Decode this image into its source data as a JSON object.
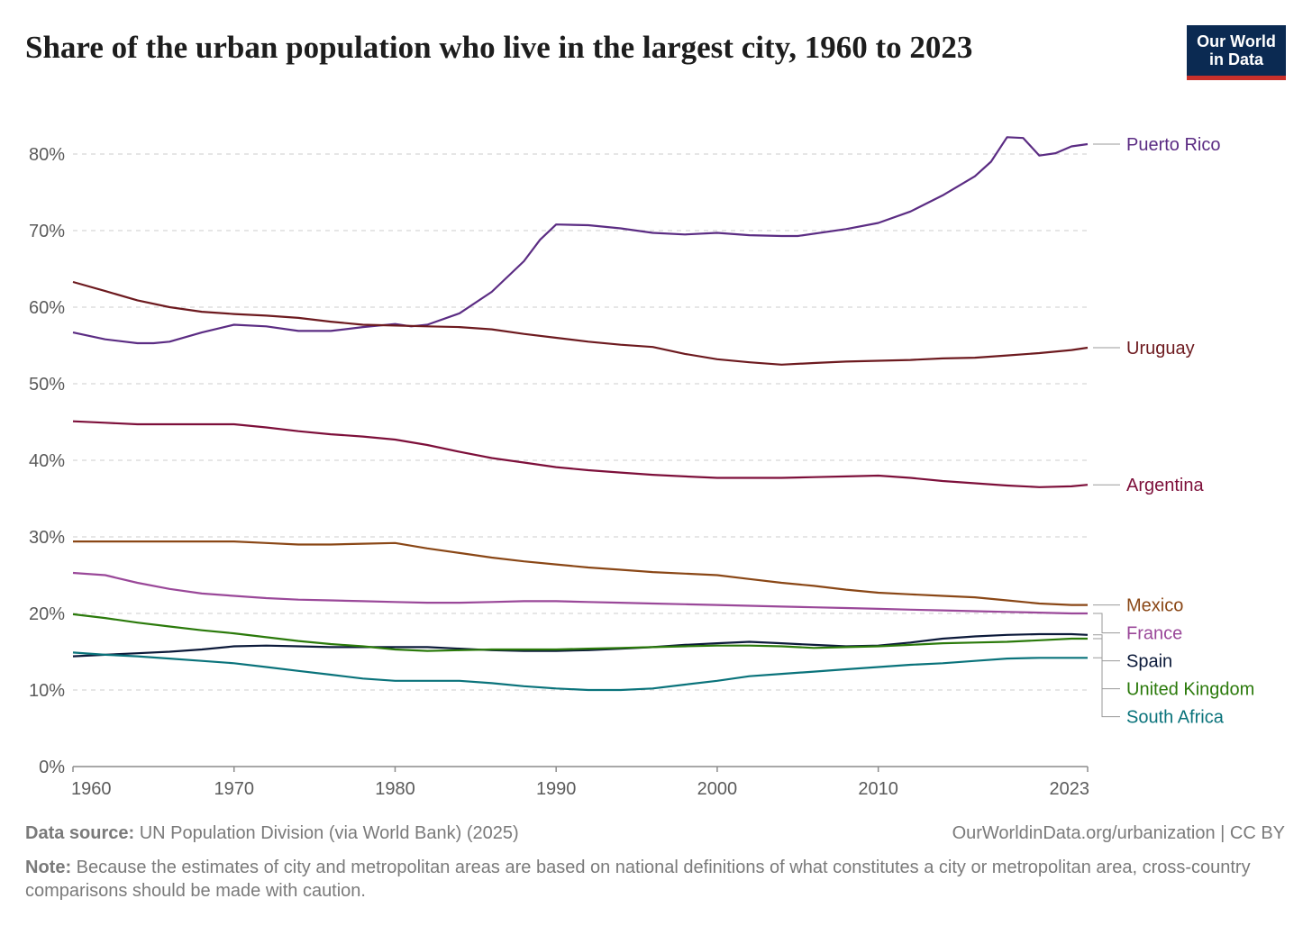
{
  "header": {
    "title": "Share of the urban population who live in the largest city, 1960 to 2023",
    "logo_line1": "Our World",
    "logo_line2": "in Data"
  },
  "footer": {
    "source_label": "Data source:",
    "source_text": "UN Population Division (via World Bank) (2025)",
    "license": "OurWorldinData.org/urbanization | CC BY",
    "note_label": "Note:",
    "note_text": "Because the estimates of city and metropolitan areas are based on national definitions of what constitutes a city or metropolitan area, cross-country comparisons should be made with caution."
  },
  "chart_data": {
    "type": "line",
    "title": "Share of the urban population who live in the largest city, 1960 to 2023",
    "xlabel": "",
    "ylabel": "",
    "xlim": [
      1960,
      2023
    ],
    "ylim": [
      0,
      80
    ],
    "x_ticks": [
      "1960",
      "1970",
      "1980",
      "1990",
      "2000",
      "2010",
      "2023"
    ],
    "y_ticks": [
      "0%",
      "10%",
      "20%",
      "30%",
      "40%",
      "50%",
      "60%",
      "70%",
      "80%"
    ],
    "y_tick_values": [
      0,
      10,
      20,
      30,
      40,
      50,
      60,
      70,
      80
    ],
    "grid": "horizontal dashed",
    "legend": "labels at right end of lines",
    "series": [
      {
        "name": "Puerto Rico",
        "color": "#5b2c83",
        "points": [
          [
            1960,
            56.7
          ],
          [
            1962,
            55.8
          ],
          [
            1964,
            55.3
          ],
          [
            1965,
            55.3
          ],
          [
            1966,
            55.5
          ],
          [
            1968,
            56.7
          ],
          [
            1970,
            57.7
          ],
          [
            1972,
            57.5
          ],
          [
            1974,
            56.9
          ],
          [
            1976,
            56.9
          ],
          [
            1978,
            57.4
          ],
          [
            1980,
            57.8
          ],
          [
            1981,
            57.5
          ],
          [
            1982,
            57.7
          ],
          [
            1984,
            59.2
          ],
          [
            1986,
            62.0
          ],
          [
            1988,
            66.0
          ],
          [
            1989,
            68.8
          ],
          [
            1990,
            70.8
          ],
          [
            1992,
            70.7
          ],
          [
            1994,
            70.3
          ],
          [
            1996,
            69.7
          ],
          [
            1998,
            69.5
          ],
          [
            2000,
            69.7
          ],
          [
            2002,
            69.4
          ],
          [
            2004,
            69.3
          ],
          [
            2005,
            69.3
          ],
          [
            2008,
            70.2
          ],
          [
            2010,
            71.0
          ],
          [
            2012,
            72.5
          ],
          [
            2014,
            74.6
          ],
          [
            2016,
            77.1
          ],
          [
            2017,
            79.0
          ],
          [
            2018,
            82.2
          ],
          [
            2019,
            82.1
          ],
          [
            2020,
            79.8
          ],
          [
            2021,
            80.1
          ],
          [
            2022,
            81.0
          ],
          [
            2023,
            81.3
          ]
        ]
      },
      {
        "name": "Uruguay",
        "color": "#6d1a1f",
        "points": [
          [
            1960,
            63.3
          ],
          [
            1962,
            62.1
          ],
          [
            1964,
            60.9
          ],
          [
            1966,
            60.0
          ],
          [
            1968,
            59.4
          ],
          [
            1970,
            59.1
          ],
          [
            1972,
            58.9
          ],
          [
            1974,
            58.6
          ],
          [
            1976,
            58.1
          ],
          [
            1978,
            57.7
          ],
          [
            1980,
            57.6
          ],
          [
            1982,
            57.5
          ],
          [
            1984,
            57.4
          ],
          [
            1986,
            57.1
          ],
          [
            1988,
            56.5
          ],
          [
            1990,
            56.0
          ],
          [
            1992,
            55.5
          ],
          [
            1994,
            55.1
          ],
          [
            1996,
            54.8
          ],
          [
            1998,
            53.9
          ],
          [
            2000,
            53.2
          ],
          [
            2002,
            52.8
          ],
          [
            2004,
            52.5
          ],
          [
            2006,
            52.7
          ],
          [
            2008,
            52.9
          ],
          [
            2010,
            53.0
          ],
          [
            2012,
            53.1
          ],
          [
            2014,
            53.3
          ],
          [
            2016,
            53.4
          ],
          [
            2018,
            53.7
          ],
          [
            2020,
            54.0
          ],
          [
            2022,
            54.4
          ],
          [
            2023,
            54.7
          ]
        ]
      },
      {
        "name": "Argentina",
        "color": "#7d0f3a",
        "points": [
          [
            1960,
            45.1
          ],
          [
            1962,
            44.9
          ],
          [
            1964,
            44.7
          ],
          [
            1966,
            44.7
          ],
          [
            1968,
            44.7
          ],
          [
            1970,
            44.7
          ],
          [
            1972,
            44.3
          ],
          [
            1974,
            43.8
          ],
          [
            1976,
            43.4
          ],
          [
            1978,
            43.1
          ],
          [
            1980,
            42.7
          ],
          [
            1982,
            42.0
          ],
          [
            1984,
            41.1
          ],
          [
            1986,
            40.3
          ],
          [
            1988,
            39.7
          ],
          [
            1990,
            39.1
          ],
          [
            1992,
            38.7
          ],
          [
            1994,
            38.4
          ],
          [
            1996,
            38.1
          ],
          [
            1998,
            37.9
          ],
          [
            2000,
            37.7
          ],
          [
            2002,
            37.7
          ],
          [
            2004,
            37.7
          ],
          [
            2006,
            37.8
          ],
          [
            2008,
            37.9
          ],
          [
            2010,
            38.0
          ],
          [
            2012,
            37.7
          ],
          [
            2014,
            37.3
          ],
          [
            2016,
            37.0
          ],
          [
            2018,
            36.7
          ],
          [
            2020,
            36.5
          ],
          [
            2022,
            36.6
          ],
          [
            2023,
            36.8
          ]
        ]
      },
      {
        "name": "Mexico",
        "color": "#8a4716",
        "points": [
          [
            1960,
            29.4
          ],
          [
            1962,
            29.4
          ],
          [
            1964,
            29.4
          ],
          [
            1966,
            29.4
          ],
          [
            1968,
            29.4
          ],
          [
            1970,
            29.4
          ],
          [
            1972,
            29.2
          ],
          [
            1974,
            29.0
          ],
          [
            1976,
            29.0
          ],
          [
            1978,
            29.1
          ],
          [
            1980,
            29.2
          ],
          [
            1982,
            28.5
          ],
          [
            1984,
            27.9
          ],
          [
            1986,
            27.3
          ],
          [
            1988,
            26.8
          ],
          [
            1990,
            26.4
          ],
          [
            1992,
            26.0
          ],
          [
            1994,
            25.7
          ],
          [
            1996,
            25.4
          ],
          [
            1998,
            25.2
          ],
          [
            2000,
            25.0
          ],
          [
            2002,
            24.5
          ],
          [
            2004,
            24.0
          ],
          [
            2006,
            23.6
          ],
          [
            2008,
            23.1
          ],
          [
            2010,
            22.7
          ],
          [
            2012,
            22.5
          ],
          [
            2014,
            22.3
          ],
          [
            2016,
            22.1
          ],
          [
            2018,
            21.7
          ],
          [
            2020,
            21.3
          ],
          [
            2022,
            21.1
          ],
          [
            2023,
            21.1
          ]
        ]
      },
      {
        "name": "France",
        "color": "#9a4899",
        "points": [
          [
            1960,
            25.3
          ],
          [
            1962,
            25.0
          ],
          [
            1964,
            24.0
          ],
          [
            1966,
            23.2
          ],
          [
            1968,
            22.6
          ],
          [
            1970,
            22.3
          ],
          [
            1972,
            22.0
          ],
          [
            1974,
            21.8
          ],
          [
            1976,
            21.7
          ],
          [
            1978,
            21.6
          ],
          [
            1980,
            21.5
          ],
          [
            1982,
            21.4
          ],
          [
            1984,
            21.4
          ],
          [
            1986,
            21.5
          ],
          [
            1988,
            21.6
          ],
          [
            1990,
            21.6
          ],
          [
            1992,
            21.5
          ],
          [
            1994,
            21.4
          ],
          [
            1996,
            21.3
          ],
          [
            1998,
            21.2
          ],
          [
            2000,
            21.1
          ],
          [
            2002,
            21.0
          ],
          [
            2004,
            20.9
          ],
          [
            2006,
            20.8
          ],
          [
            2008,
            20.7
          ],
          [
            2010,
            20.6
          ],
          [
            2012,
            20.5
          ],
          [
            2014,
            20.4
          ],
          [
            2016,
            20.3
          ],
          [
            2018,
            20.2
          ],
          [
            2020,
            20.1
          ],
          [
            2022,
            20.0
          ],
          [
            2023,
            20.0
          ]
        ]
      },
      {
        "name": "Spain",
        "color": "#0c1a3a",
        "points": [
          [
            1960,
            14.4
          ],
          [
            1962,
            14.6
          ],
          [
            1964,
            14.8
          ],
          [
            1966,
            15.0
          ],
          [
            1968,
            15.3
          ],
          [
            1970,
            15.7
          ],
          [
            1972,
            15.8
          ],
          [
            1974,
            15.7
          ],
          [
            1976,
            15.6
          ],
          [
            1978,
            15.6
          ],
          [
            1980,
            15.6
          ],
          [
            1982,
            15.6
          ],
          [
            1984,
            15.4
          ],
          [
            1986,
            15.2
          ],
          [
            1988,
            15.1
          ],
          [
            1990,
            15.1
          ],
          [
            1992,
            15.2
          ],
          [
            1994,
            15.4
          ],
          [
            1996,
            15.6
          ],
          [
            1998,
            15.9
          ],
          [
            2000,
            16.1
          ],
          [
            2002,
            16.3
          ],
          [
            2004,
            16.1
          ],
          [
            2006,
            15.9
          ],
          [
            2008,
            15.7
          ],
          [
            2010,
            15.8
          ],
          [
            2012,
            16.2
          ],
          [
            2014,
            16.7
          ],
          [
            2016,
            17.0
          ],
          [
            2018,
            17.2
          ],
          [
            2020,
            17.3
          ],
          [
            2022,
            17.3
          ],
          [
            2023,
            17.2
          ]
        ]
      },
      {
        "name": "United Kingdom",
        "color": "#2b7a0b",
        "points": [
          [
            1960,
            19.9
          ],
          [
            1962,
            19.4
          ],
          [
            1964,
            18.8
          ],
          [
            1966,
            18.3
          ],
          [
            1968,
            17.8
          ],
          [
            1970,
            17.4
          ],
          [
            1972,
            16.9
          ],
          [
            1974,
            16.4
          ],
          [
            1976,
            16.0
          ],
          [
            1978,
            15.7
          ],
          [
            1980,
            15.3
          ],
          [
            1982,
            15.1
          ],
          [
            1984,
            15.2
          ],
          [
            1986,
            15.3
          ],
          [
            1988,
            15.3
          ],
          [
            1990,
            15.3
          ],
          [
            1992,
            15.4
          ],
          [
            1994,
            15.5
          ],
          [
            1996,
            15.6
          ],
          [
            1998,
            15.7
          ],
          [
            2000,
            15.8
          ],
          [
            2002,
            15.8
          ],
          [
            2004,
            15.7
          ],
          [
            2006,
            15.5
          ],
          [
            2008,
            15.6
          ],
          [
            2010,
            15.7
          ],
          [
            2012,
            15.9
          ],
          [
            2014,
            16.1
          ],
          [
            2016,
            16.2
          ],
          [
            2018,
            16.3
          ],
          [
            2020,
            16.5
          ],
          [
            2022,
            16.7
          ],
          [
            2023,
            16.7
          ]
        ]
      },
      {
        "name": "South Africa",
        "color": "#0a737b",
        "points": [
          [
            1960,
            14.9
          ],
          [
            1962,
            14.6
          ],
          [
            1964,
            14.4
          ],
          [
            1966,
            14.1
          ],
          [
            1968,
            13.8
          ],
          [
            1970,
            13.5
          ],
          [
            1972,
            13.0
          ],
          [
            1974,
            12.5
          ],
          [
            1976,
            12.0
          ],
          [
            1978,
            11.5
          ],
          [
            1980,
            11.2
          ],
          [
            1982,
            11.2
          ],
          [
            1984,
            11.2
          ],
          [
            1986,
            10.9
          ],
          [
            1988,
            10.5
          ],
          [
            1990,
            10.2
          ],
          [
            1992,
            10.0
          ],
          [
            1994,
            10.0
          ],
          [
            1996,
            10.2
          ],
          [
            1998,
            10.7
          ],
          [
            2000,
            11.2
          ],
          [
            2002,
            11.8
          ],
          [
            2004,
            12.1
          ],
          [
            2006,
            12.4
          ],
          [
            2008,
            12.7
          ],
          [
            2010,
            13.0
          ],
          [
            2012,
            13.3
          ],
          [
            2014,
            13.5
          ],
          [
            2016,
            13.8
          ],
          [
            2018,
            14.1
          ],
          [
            2020,
            14.2
          ],
          [
            2022,
            14.2
          ],
          [
            2023,
            14.2
          ]
        ]
      }
    ]
  }
}
